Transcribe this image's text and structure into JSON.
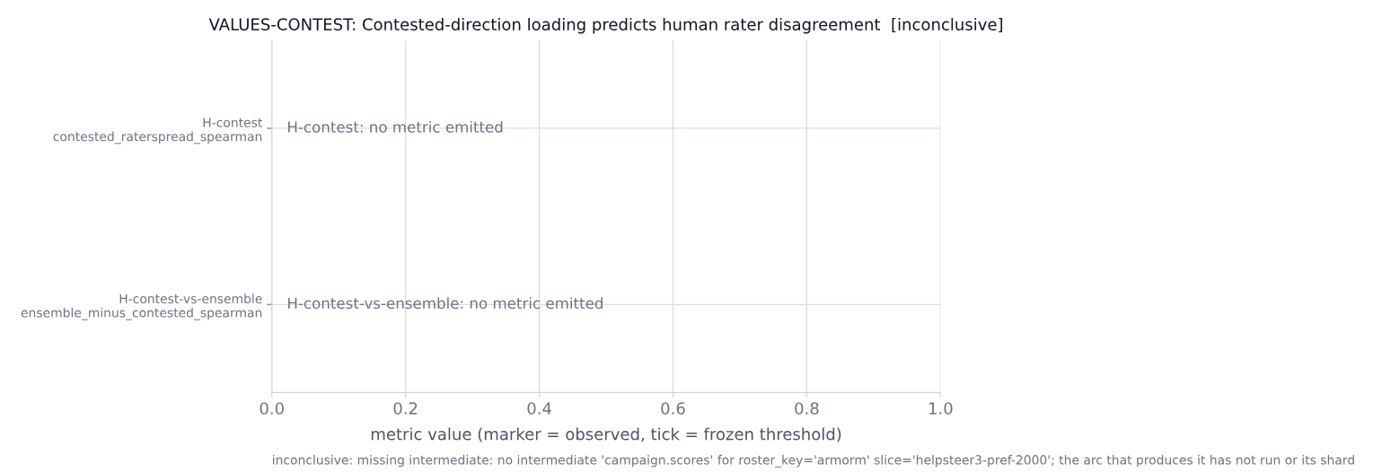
{
  "chart_data": {
    "type": "scatter",
    "orientation": "horizontal",
    "title": "VALUES-CONTEST: Contested-direction loading predicts human rater disagreement  [inconclusive]",
    "xlabel": "metric value (marker = observed, tick = frozen threshold)",
    "categories": [
      "H-contest\ncontested_raterspread_spearman",
      "H-contest-vs-ensemble\nensemble_minus_contested_spearman"
    ],
    "values": [
      null,
      null
    ],
    "xlim": [
      0.0,
      1.0
    ],
    "xticks": [
      {
        "value": 0,
        "label": "0.0"
      },
      {
        "value": 0.2,
        "label": "0.2"
      },
      {
        "value": 0.4,
        "label": "0.4"
      },
      {
        "value": 0.6,
        "label": "0.6"
      },
      {
        "value": 0.8,
        "label": "0.8"
      },
      {
        "value": 1,
        "label": "1.0"
      }
    ],
    "grid": true,
    "annotations": [
      "H-contest: no metric emitted",
      "H-contest-vs-ensemble: no metric emitted",
      "inconclusive: missing intermediate: no intermediate 'campaign.scores' for roster_key='armorm' slice='helpsteer3-pref-2000'; the arc that produces it has not run or its shard"
    ]
  }
}
